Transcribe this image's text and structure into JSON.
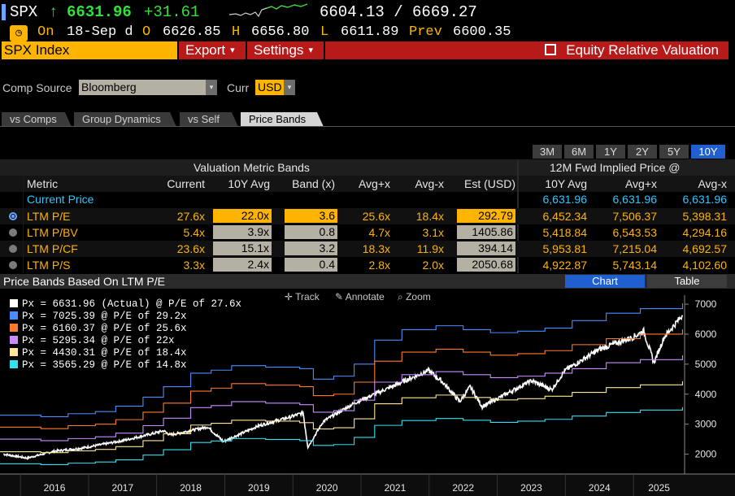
{
  "ticker": {
    "symbol": "SPX",
    "arrow": "↑",
    "last": "6631.96",
    "change": "+31.61",
    "range": "6604.13 / 6669.27"
  },
  "quote": {
    "status": "On",
    "date": "18-Sep d",
    "open_label": "O",
    "open": "6626.85",
    "high_label": "H",
    "high": "6656.80",
    "low_label": "L",
    "low": "6611.89",
    "prev_label": "Prev",
    "prev": "6600.35"
  },
  "command": {
    "security": "SPX Index",
    "export_label": "Export",
    "settings_label": "Settings",
    "function_title": "Equity Relative Valuation"
  },
  "source": {
    "comp_label": "Comp Source",
    "comp_value": "Bloomberg",
    "curr_label": "Curr",
    "curr_value": "USD"
  },
  "tabs": [
    "vs Comps",
    "Group Dynamics",
    "vs Self",
    "Price Bands"
  ],
  "periods": [
    "3M",
    "6M",
    "1Y",
    "2Y",
    "5Y",
    "10Y"
  ],
  "table": {
    "group1_title": "Valuation Metric Bands",
    "group2_title": "12M Fwd Implied Price @",
    "headers": [
      "Metric",
      "Current",
      "10Y Avg",
      "Band (x)",
      "Avg+x",
      "Avg-x",
      "Est (USD)",
      "10Y Avg",
      "Avg+x",
      "Avg-x"
    ],
    "current_price": {
      "label": "Current Price",
      "p1": "6,631.96",
      "p2": "6,631.96",
      "p3": "6,631.96"
    },
    "rows": [
      {
        "metric": "LTM P/E",
        "current": "27.6x",
        "avg": "22.0x",
        "band": "3.6",
        "plus": "25.6x",
        "minus": "18.4x",
        "est": "292.79",
        "p1": "6,452.34",
        "p2": "7,506.37",
        "p3": "5,398.31"
      },
      {
        "metric": "LTM P/BV",
        "current": "5.4x",
        "avg": "3.9x",
        "band": "0.8",
        "plus": "4.7x",
        "minus": "3.1x",
        "est": "1405.86",
        "p1": "5,418.84",
        "p2": "6,543.53",
        "p3": "4,294.16"
      },
      {
        "metric": "LTM P/CF",
        "current": "23.6x",
        "avg": "15.1x",
        "band": "3.2",
        "plus": "18.3x",
        "minus": "11.9x",
        "est": "394.14",
        "p1": "5,953.81",
        "p2": "7,215.04",
        "p3": "4,692.57"
      },
      {
        "metric": "LTM P/S",
        "current": "3.3x",
        "avg": "2.4x",
        "band": "0.4",
        "plus": "2.8x",
        "minus": "2.0x",
        "est": "2050.68",
        "p1": "4,922.87",
        "p2": "5,743.14",
        "p3": "4,102.60"
      }
    ]
  },
  "chart_panel": {
    "title": "Price Bands Based On LTM P/E",
    "chart_btn": "Chart",
    "table_btn": "Table",
    "track": "Track",
    "annotate": "Annotate",
    "zoom": "Zoom"
  },
  "chart_data": {
    "type": "line",
    "ylim": [
      1500,
      7300
    ],
    "yticks": [
      2000,
      3000,
      4000,
      5000,
      6000,
      7000
    ],
    "xlim": [
      2015.7,
      2025.75
    ],
    "xtick_labels": [
      "2016",
      "2017",
      "2018",
      "2019",
      "2020",
      "2021",
      "2022",
      "2023",
      "2024",
      "2025"
    ],
    "grid": false,
    "legend_position": "top-left",
    "series": [
      {
        "name": "Px = 6631.96 (Actual) @ P/E of 27.6x",
        "color": "#ffffff",
        "kind": "price",
        "points": [
          [
            2015.75,
            2000
          ],
          [
            2016.1,
            1870
          ],
          [
            2016.5,
            2100
          ],
          [
            2016.9,
            2200
          ],
          [
            2017.5,
            2450
          ],
          [
            2017.95,
            2690
          ],
          [
            2018.1,
            2780
          ],
          [
            2018.2,
            2640
          ],
          [
            2018.75,
            2910
          ],
          [
            2018.98,
            2420
          ],
          [
            2019.5,
            2950
          ],
          [
            2019.95,
            3230
          ],
          [
            2020.15,
            3380
          ],
          [
            2020.22,
            2240
          ],
          [
            2020.45,
            3100
          ],
          [
            2020.9,
            3700
          ],
          [
            2021.5,
            4300
          ],
          [
            2021.99,
            4790
          ],
          [
            2022.2,
            4400
          ],
          [
            2022.45,
            3750
          ],
          [
            2022.6,
            4250
          ],
          [
            2022.78,
            3580
          ],
          [
            2023.0,
            3850
          ],
          [
            2023.5,
            4450
          ],
          [
            2023.8,
            4150
          ],
          [
            2023.99,
            4780
          ],
          [
            2024.5,
            5500
          ],
          [
            2024.99,
            5900
          ],
          [
            2025.15,
            6100
          ],
          [
            2025.3,
            5050
          ],
          [
            2025.45,
            5900
          ],
          [
            2025.72,
            6632
          ]
        ]
      },
      {
        "name": "Px = 7025.39 @ P/E of 29.2x",
        "color": "#4a8cff",
        "kind": "band",
        "points": [
          [
            2015.7,
            3300
          ],
          [
            2016.3,
            3250
          ],
          [
            2016.7,
            3350
          ],
          [
            2017.1,
            3420
          ],
          [
            2017.4,
            3600
          ],
          [
            2017.8,
            3900
          ],
          [
            2018.1,
            4250
          ],
          [
            2018.5,
            4700
          ],
          [
            2018.8,
            4800
          ],
          [
            2019.1,
            4950
          ],
          [
            2019.6,
            4900
          ],
          [
            2020.1,
            4850
          ],
          [
            2020.3,
            4500
          ],
          [
            2020.6,
            4600
          ],
          [
            2020.9,
            5000
          ],
          [
            2021.2,
            5800
          ],
          [
            2021.6,
            6150
          ],
          [
            2022.1,
            6280
          ],
          [
            2022.5,
            6150
          ],
          [
            2022.9,
            6050
          ],
          [
            2023.3,
            6100
          ],
          [
            2023.7,
            6200
          ],
          [
            2024.1,
            6450
          ],
          [
            2024.6,
            6700
          ],
          [
            2025.1,
            6850
          ],
          [
            2025.72,
            7025
          ]
        ]
      },
      {
        "name": "Px = 6160.37 @ P/E of 25.6x",
        "color": "#ff7a2f",
        "kind": "band",
        "points": [
          [
            2015.7,
            2900
          ],
          [
            2016.3,
            2850
          ],
          [
            2016.7,
            2950
          ],
          [
            2017.1,
            3000
          ],
          [
            2017.4,
            3150
          ],
          [
            2017.8,
            3400
          ],
          [
            2018.1,
            3700
          ],
          [
            2018.5,
            4100
          ],
          [
            2018.8,
            4200
          ],
          [
            2019.1,
            4350
          ],
          [
            2019.6,
            4300
          ],
          [
            2020.1,
            4250
          ],
          [
            2020.3,
            3950
          ],
          [
            2020.6,
            4000
          ],
          [
            2020.9,
            4400
          ],
          [
            2021.2,
            5100
          ],
          [
            2021.6,
            5400
          ],
          [
            2022.1,
            5500
          ],
          [
            2022.5,
            5400
          ],
          [
            2022.9,
            5300
          ],
          [
            2023.3,
            5350
          ],
          [
            2023.7,
            5450
          ],
          [
            2024.1,
            5650
          ],
          [
            2024.6,
            5850
          ],
          [
            2025.1,
            6000
          ],
          [
            2025.72,
            6160
          ]
        ]
      },
      {
        "name": "Px = 5295.34 @ P/E of 22x",
        "color": "#c98cff",
        "kind": "band",
        "points": [
          [
            2015.7,
            2500
          ],
          [
            2016.3,
            2450
          ],
          [
            2016.7,
            2520
          ],
          [
            2017.1,
            2580
          ],
          [
            2017.4,
            2700
          ],
          [
            2017.8,
            2950
          ],
          [
            2018.1,
            3200
          ],
          [
            2018.5,
            3550
          ],
          [
            2018.8,
            3620
          ],
          [
            2019.1,
            3750
          ],
          [
            2019.6,
            3700
          ],
          [
            2020.1,
            3650
          ],
          [
            2020.3,
            3400
          ],
          [
            2020.6,
            3450
          ],
          [
            2020.9,
            3800
          ],
          [
            2021.2,
            4400
          ],
          [
            2021.6,
            4650
          ],
          [
            2022.1,
            4750
          ],
          [
            2022.5,
            4650
          ],
          [
            2022.9,
            4550
          ],
          [
            2023.3,
            4600
          ],
          [
            2023.7,
            4700
          ],
          [
            2024.1,
            4850
          ],
          [
            2024.6,
            5050
          ],
          [
            2025.1,
            5150
          ],
          [
            2025.72,
            5295
          ]
        ]
      },
      {
        "name": "Px = 4430.31 @ P/E of 18.4x",
        "color": "#ffe59a",
        "kind": "band",
        "points": [
          [
            2015.7,
            2080
          ],
          [
            2016.3,
            2050
          ],
          [
            2016.7,
            2110
          ],
          [
            2017.1,
            2160
          ],
          [
            2017.4,
            2250
          ],
          [
            2017.8,
            2450
          ],
          [
            2018.1,
            2680
          ],
          [
            2018.5,
            2970
          ],
          [
            2018.8,
            3030
          ],
          [
            2019.1,
            3130
          ],
          [
            2019.6,
            3100
          ],
          [
            2020.1,
            3050
          ],
          [
            2020.3,
            2840
          ],
          [
            2020.6,
            2880
          ],
          [
            2020.9,
            3180
          ],
          [
            2021.2,
            3680
          ],
          [
            2021.6,
            3880
          ],
          [
            2022.1,
            3970
          ],
          [
            2022.5,
            3890
          ],
          [
            2022.9,
            3810
          ],
          [
            2023.3,
            3850
          ],
          [
            2023.7,
            3930
          ],
          [
            2024.1,
            4060
          ],
          [
            2024.6,
            4220
          ],
          [
            2025.1,
            4310
          ],
          [
            2025.72,
            4430
          ]
        ]
      },
      {
        "name": "Px = 3565.29 @ P/E of 14.8x",
        "color": "#33e0f0",
        "kind": "band",
        "points": [
          [
            2015.7,
            1680
          ],
          [
            2016.3,
            1650
          ],
          [
            2016.7,
            1700
          ],
          [
            2017.1,
            1740
          ],
          [
            2017.4,
            1810
          ],
          [
            2017.8,
            1970
          ],
          [
            2018.1,
            2150
          ],
          [
            2018.5,
            2390
          ],
          [
            2018.8,
            2440
          ],
          [
            2019.1,
            2520
          ],
          [
            2019.6,
            2490
          ],
          [
            2020.1,
            2450
          ],
          [
            2020.3,
            2290
          ],
          [
            2020.6,
            2320
          ],
          [
            2020.9,
            2560
          ],
          [
            2021.2,
            2960
          ],
          [
            2021.6,
            3120
          ],
          [
            2022.1,
            3190
          ],
          [
            2022.5,
            3130
          ],
          [
            2022.9,
            3060
          ],
          [
            2023.3,
            3100
          ],
          [
            2023.7,
            3160
          ],
          [
            2024.1,
            3270
          ],
          [
            2024.6,
            3390
          ],
          [
            2025.1,
            3470
          ],
          [
            2025.72,
            3565
          ]
        ]
      }
    ]
  }
}
